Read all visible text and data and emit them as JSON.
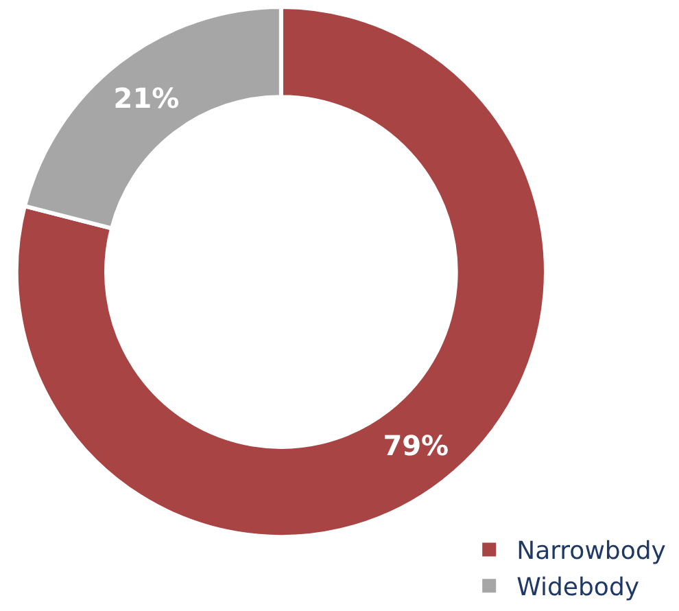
{
  "chart_data": {
    "type": "donut",
    "categories": [
      "Narrowbody",
      "Widebody"
    ],
    "values": [
      79,
      21
    ],
    "value_labels": [
      "79%",
      "21%"
    ],
    "colors": [
      "#a84443",
      "#a6a6a6"
    ],
    "legend": "bottom right"
  }
}
